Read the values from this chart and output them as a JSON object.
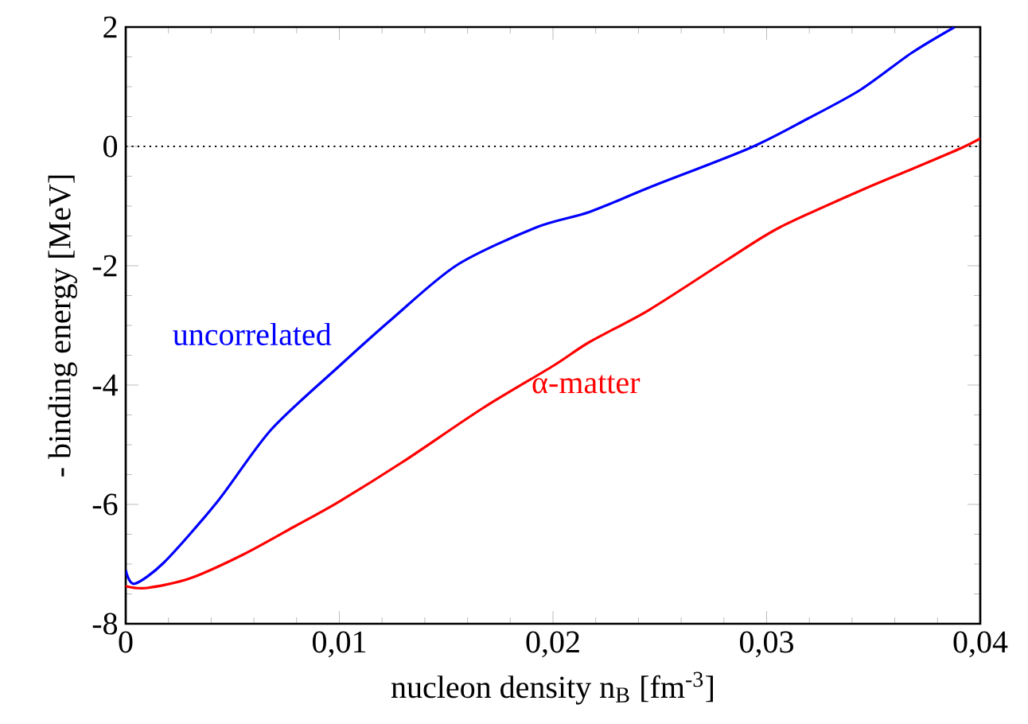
{
  "chart_data": {
    "type": "line",
    "xlabel": "nucleon density n$_{B}$ [fm$^{-3}$]",
    "ylabel": "- binding energy [MeV]",
    "xlim": [
      0,
      0.04
    ],
    "ylim": [
      -8,
      2
    ],
    "xticks": [
      {
        "value": 0,
        "label": "0"
      },
      {
        "value": 0.01,
        "label": "0,01"
      },
      {
        "value": 0.02,
        "label": "0,02"
      },
      {
        "value": 0.03,
        "label": "0,03"
      },
      {
        "value": 0.04,
        "label": "0,04"
      }
    ],
    "yticks": [
      -8,
      -6,
      -4,
      -2,
      0,
      2
    ],
    "grid": false,
    "line_style": "solid",
    "marker": "none",
    "series": [
      {
        "name": "uncorrelated",
        "color": "#0000ff",
        "x": [
          0,
          0.0004,
          0.0018,
          0.0043,
          0.0068,
          0.01,
          0.0125,
          0.0155,
          0.0192,
          0.0217,
          0.0245,
          0.0292,
          0.0319,
          0.0344,
          0.0368,
          0.0388
        ],
        "values": [
          -7.1,
          -7.33,
          -6.97,
          -5.95,
          -4.75,
          -3.68,
          -2.88,
          -1.99,
          -1.36,
          -1.1,
          -0.69,
          -0.03,
          0.46,
          0.95,
          1.57,
          2.0
        ]
      },
      {
        "name": "α-matter",
        "color": "#ff0000",
        "x": [
          0,
          0.001,
          0.003,
          0.0055,
          0.008,
          0.01,
          0.013,
          0.0167,
          0.02,
          0.0217,
          0.0245,
          0.0282,
          0.0306,
          0.0344,
          0.0368,
          0.0391,
          0.04
        ],
        "values": [
          -7.37,
          -7.4,
          -7.24,
          -6.84,
          -6.35,
          -5.95,
          -5.28,
          -4.39,
          -3.68,
          -3.28,
          -2.74,
          -1.89,
          -1.36,
          -0.74,
          -0.38,
          -0.03,
          0.13
        ]
      }
    ],
    "ref_lines": [
      {
        "axis": "y",
        "value": 0,
        "color": "#000000",
        "line_style": "dotted"
      }
    ]
  }
}
